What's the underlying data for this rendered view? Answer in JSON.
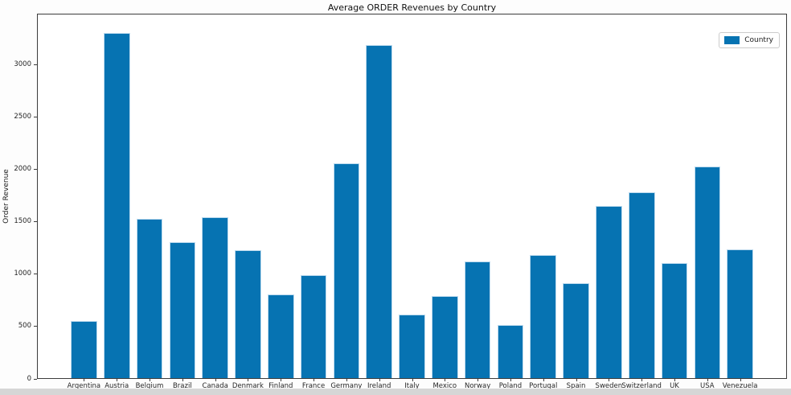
{
  "chart_data": {
    "type": "bar",
    "title": "Average ORDER Revenues by Country",
    "xlabel": "",
    "ylabel": "Order Revenue",
    "categories": [
      "Argentina",
      "Austria",
      "Belgium",
      "Brazil",
      "Canada",
      "Denmark",
      "Finland",
      "France",
      "Germany",
      "Ireland",
      "Italy",
      "Mexico",
      "Norway",
      "Poland",
      "Portugal",
      "Spain",
      "Sweden",
      "Switzerland",
      "UK",
      "USA",
      "Venezuela"
    ],
    "values": [
      550,
      3312,
      1530,
      1305,
      1545,
      1230,
      800,
      985,
      2065,
      3195,
      610,
      790,
      1120,
      510,
      1180,
      915,
      1650,
      1780,
      1105,
      2030,
      1235
    ],
    "ylim": [
      0,
      3490
    ],
    "yticks": [
      0,
      500,
      1000,
      1500,
      2000,
      2500,
      3000
    ],
    "grid": false,
    "legend": {
      "position": "upper-right",
      "entries": [
        "Country"
      ]
    },
    "colors": {
      "bar": "#0673b2",
      "bar_edge": "#bcdaee",
      "spine": "#3c3c3c"
    }
  }
}
